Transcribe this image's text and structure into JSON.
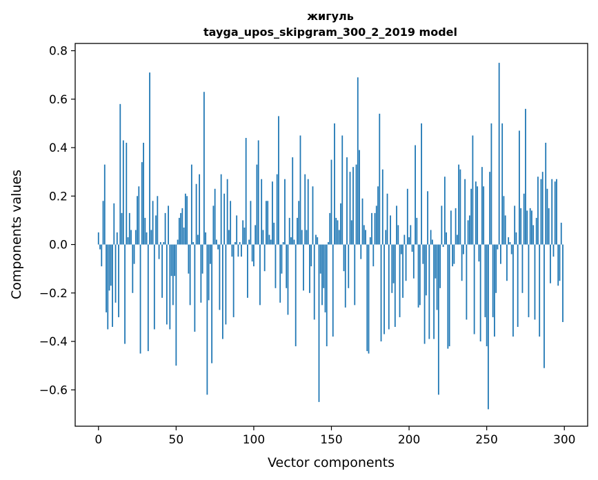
{
  "chart_data": {
    "type": "bar",
    "title": "жигуль",
    "subtitle": "tayga_upos_skipgram_300_2_2019 model",
    "xlabel": "Vector components",
    "ylabel": "Components values",
    "xlim": [
      -15,
      315
    ],
    "ylim": [
      -0.75,
      0.83
    ],
    "xticks": [
      0,
      50,
      100,
      150,
      200,
      250,
      300
    ],
    "yticks": [
      -0.6,
      -0.4,
      -0.2,
      0.0,
      0.2,
      0.4,
      0.6,
      0.8
    ],
    "xtick_labels": [
      "0",
      "50",
      "100",
      "150",
      "200",
      "250",
      "300"
    ],
    "ytick_labels": [
      "−0.6",
      "−0.4",
      "−0.2",
      "0.0",
      "0.2",
      "0.4",
      "0.6",
      "0.8"
    ],
    "grid": false,
    "bar_color": "#1f77b4",
    "x": [
      0,
      1,
      2,
      3,
      4,
      5,
      6,
      7,
      8,
      9,
      10,
      11,
      12,
      13,
      14,
      15,
      16,
      17,
      18,
      19,
      20,
      21,
      22,
      23,
      24,
      25,
      26,
      27,
      28,
      29,
      30,
      31,
      32,
      33,
      34,
      35,
      36,
      37,
      38,
      39,
      40,
      41,
      42,
      43,
      44,
      45,
      46,
      47,
      48,
      49,
      50,
      51,
      52,
      53,
      54,
      55,
      56,
      57,
      58,
      59,
      60,
      61,
      62,
      63,
      64,
      65,
      66,
      67,
      68,
      69,
      70,
      71,
      72,
      73,
      74,
      75,
      76,
      77,
      78,
      79,
      80,
      81,
      82,
      83,
      84,
      85,
      86,
      87,
      88,
      89,
      90,
      91,
      92,
      93,
      94,
      95,
      96,
      97,
      98,
      99,
      100,
      101,
      102,
      103,
      104,
      105,
      106,
      107,
      108,
      109,
      110,
      111,
      112,
      113,
      114,
      115,
      116,
      117,
      118,
      119,
      120,
      121,
      122,
      123,
      124,
      125,
      126,
      127,
      128,
      129,
      130,
      131,
      132,
      133,
      134,
      135,
      136,
      137,
      138,
      139,
      140,
      141,
      142,
      143,
      144,
      145,
      146,
      147,
      148,
      149,
      150,
      151,
      152,
      153,
      154,
      155,
      156,
      157,
      158,
      159,
      160,
      161,
      162,
      163,
      164,
      165,
      166,
      167,
      168,
      169,
      170,
      171,
      172,
      173,
      174,
      175,
      176,
      177,
      178,
      179,
      180,
      181,
      182,
      183,
      184,
      185,
      186,
      187,
      188,
      189,
      190,
      191,
      192,
      193,
      194,
      195,
      196,
      197,
      198,
      199,
      200,
      201,
      202,
      203,
      204,
      205,
      206,
      207,
      208,
      209,
      210,
      211,
      212,
      213,
      214,
      215,
      216,
      217,
      218,
      219,
      220,
      221,
      222,
      223,
      224,
      225,
      226,
      227,
      228,
      229,
      230,
      231,
      232,
      233,
      234,
      235,
      236,
      237,
      238,
      239,
      240,
      241,
      242,
      243,
      244,
      245,
      246,
      247,
      248,
      249,
      250,
      251,
      252,
      253,
      254,
      255,
      256,
      257,
      258,
      259,
      260,
      261,
      262,
      263,
      264,
      265,
      266,
      267,
      268,
      269,
      270,
      271,
      272,
      273,
      274,
      275,
      276,
      277,
      278,
      279,
      280,
      281,
      282,
      283,
      284,
      285,
      286,
      287,
      288,
      289,
      290,
      291,
      292,
      293,
      294,
      295,
      296,
      297,
      298,
      299
    ],
    "values": [
      0.05,
      -0.02,
      -0.09,
      0.18,
      0.33,
      -0.28,
      -0.35,
      -0.19,
      -0.17,
      -0.34,
      0.17,
      -0.24,
      0.05,
      -0.3,
      0.58,
      0.13,
      0.43,
      -0.41,
      0.42,
      0.03,
      0.13,
      0.06,
      -0.2,
      -0.08,
      0.06,
      0.2,
      0.24,
      -0.45,
      0.34,
      0.42,
      0.11,
      0.05,
      -0.44,
      0.71,
      0.06,
      0.18,
      -0.35,
      0.12,
      0.2,
      -0.06,
      0.01,
      -0.22,
      0.01,
      0.13,
      -0.33,
      0.16,
      -0.35,
      -0.13,
      -0.25,
      -0.13,
      -0.5,
      0.02,
      0.11,
      0.13,
      0.15,
      0.07,
      0.21,
      0.2,
      -0.12,
      -0.25,
      0.33,
      0.01,
      -0.36,
      0.25,
      0.04,
      0.29,
      -0.24,
      -0.12,
      0.63,
      0.05,
      -0.62,
      -0.23,
      -0.08,
      -0.49,
      0.16,
      0.23,
      0.02,
      -0.02,
      -0.27,
      0.29,
      -0.39,
      0.21,
      -0.33,
      0.27,
      0.06,
      0.18,
      -0.05,
      -0.3,
      0.01,
      0.12,
      -0.05,
      0.01,
      -0.05,
      0.1,
      0.07,
      0.44,
      -0.22,
      0.02,
      0.18,
      -0.07,
      -0.09,
      0.08,
      0.33,
      0.43,
      -0.25,
      0.27,
      0.06,
      -0.11,
      0.18,
      0.18,
      0.04,
      0.02,
      0.26,
      0.09,
      -0.18,
      0.29,
      0.53,
      -0.24,
      -0.12,
      0.01,
      0.27,
      -0.18,
      -0.29,
      0.11,
      0.03,
      0.36,
      0.02,
      -0.42,
      0.11,
      0.18,
      0.45,
      0.06,
      -0.19,
      0.29,
      0.06,
      0.27,
      -0.2,
      -0.09,
      0.24,
      -0.31,
      0.04,
      0.03,
      -0.65,
      -0.12,
      -0.25,
      -0.18,
      -0.28,
      -0.42,
      0.01,
      0.13,
      0.35,
      -0.38,
      0.5,
      0.11,
      0.1,
      0.06,
      0.17,
      0.45,
      -0.11,
      -0.26,
      0.36,
      -0.18,
      0.3,
      0.1,
      0.32,
      -0.25,
      0.33,
      0.69,
      0.39,
      -0.06,
      0.19,
      0.08,
      0.06,
      -0.44,
      -0.45,
      0.03,
      0.13,
      -0.09,
      0.13,
      0.16,
      0.24,
      0.54,
      -0.4,
      0.31,
      -0.37,
      0.06,
      0.21,
      -0.35,
      0.12,
      -0.2,
      -0.16,
      -0.34,
      0.16,
      0.08,
      -0.3,
      -0.04,
      -0.22,
      0.04,
      -0.15,
      0.23,
      0.03,
      0.08,
      -0.03,
      -0.14,
      0.41,
      0.11,
      -0.26,
      -0.25,
      0.5,
      -0.08,
      -0.41,
      -0.21,
      0.22,
      -0.39,
      0.06,
      0.02,
      -0.39,
      -0.14,
      -0.27,
      -0.62,
      -0.18,
      0.16,
      -0.01,
      0.28,
      0.05,
      -0.43,
      -0.42,
      0.14,
      -0.09,
      -0.08,
      0.15,
      0.04,
      0.33,
      0.31,
      -0.15,
      -0.04,
      0.27,
      -0.31,
      0.1,
      0.12,
      0.23,
      0.45,
      -0.37,
      0.26,
      0.24,
      -0.07,
      -0.4,
      0.32,
      0.24,
      -0.3,
      -0.42,
      -0.68,
      0.3,
      0.5,
      -0.3,
      -0.38,
      -0.2,
      -0.02,
      0.75,
      -0.08,
      0.5,
      0.2,
      0.12,
      -0.15,
      0.03,
      0.01,
      -0.04,
      -0.38,
      0.16,
      0.05,
      -0.34,
      0.47,
      0.15,
      -0.2,
      0.21,
      0.56,
      0.14,
      -0.3,
      0.15,
      0.14,
      0.08,
      -0.31,
      0.11,
      0.28,
      -0.38,
      0.27,
      0.3,
      -0.51,
      0.42,
      0.23,
      0.15,
      -0.16,
      0.27,
      -0.05,
      0.26,
      0.27,
      -0.17,
      -0.15,
      0.09,
      -0.32
    ]
  }
}
